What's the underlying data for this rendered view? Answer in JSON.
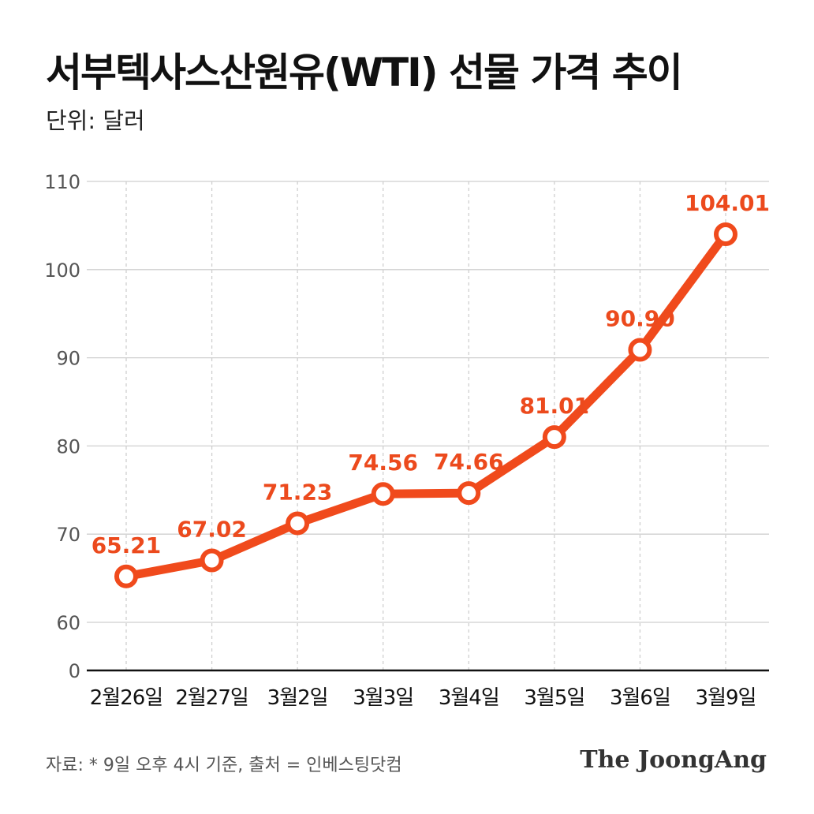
{
  "header": {
    "title": "서부텍사스산원유(WTI) 선물 가격 추이",
    "unit": "단위: 달러"
  },
  "footer": {
    "source": "자료: * 9일 오후 4시 기준, 출처 = 인베스팅닷컴",
    "brand": "The JoongAng"
  },
  "colors": {
    "series": "#f04a1c",
    "label": "#ec4a1d",
    "grid": "#cfcfcf",
    "axis": "#111111",
    "tick": "#555555"
  },
  "chart_data": {
    "type": "line",
    "categories": [
      "2월26일",
      "2월27일",
      "3월2일",
      "3월3일",
      "3월4일",
      "3월5일",
      "3월6일",
      "3월9일"
    ],
    "values": [
      65.21,
      67.02,
      71.23,
      74.56,
      74.66,
      81.01,
      90.9,
      104.01
    ],
    "value_labels": [
      "65.21",
      "67.02",
      "71.23",
      "74.56",
      "74.66",
      "81.01",
      "90.90",
      "104.01"
    ],
    "ylim": [
      0,
      110
    ],
    "ybreak": [
      0,
      60
    ],
    "yticks": [
      0,
      60,
      70,
      80,
      90,
      100,
      110
    ],
    "ytick_labels": [
      "0",
      "60",
      "70",
      "80",
      "90",
      "100",
      "110"
    ],
    "grid": true,
    "legend": "none"
  }
}
